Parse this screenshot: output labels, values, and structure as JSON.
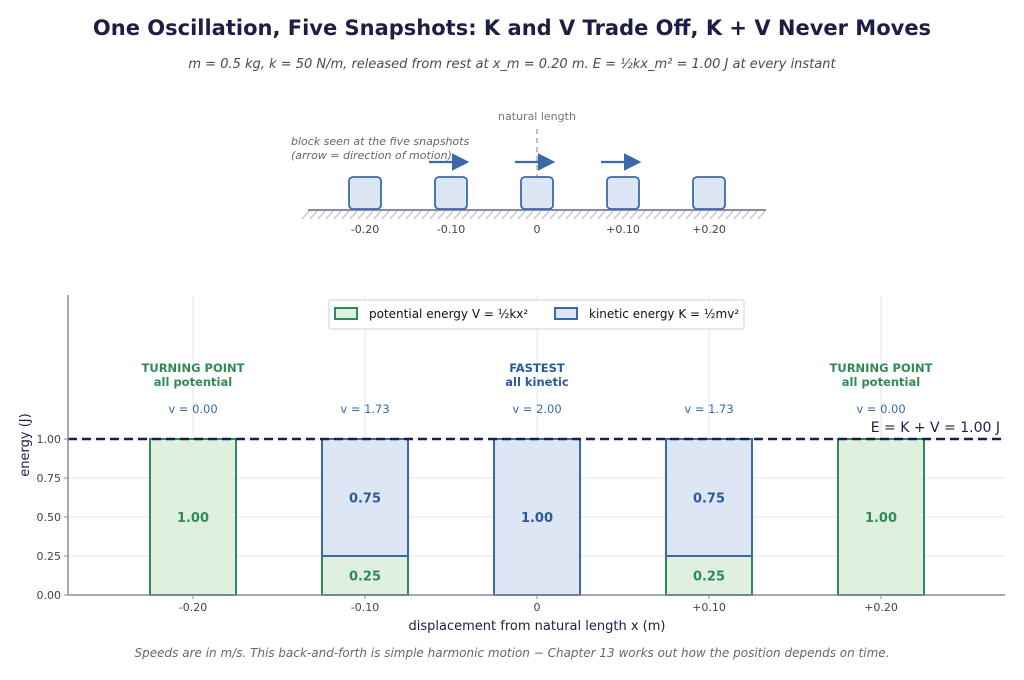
{
  "title": "One Oscillation, Five Snapshots:  K and V Trade Off, K + V Never Moves",
  "subtitle": "m = 0.5 kg,  k = 50 N/m,  released from rest at x_m = 0.20 m.  E = ½kx_m² = 1.00 J at every instant",
  "footnote": "Speeds are in m/s.  This back-and-forth is simple harmonic motion − Chapter 13 works out how the position depends on time.",
  "colors": {
    "potential_fill": "#dff0df",
    "potential_edge": "#2e8b57",
    "kinetic_fill": "#dce6f5",
    "kinetic_edge": "#3a69aa",
    "axis": "#8a8aa0",
    "grid": "#e6e6ee",
    "total_line": "#1e1d45",
    "arrow": "#3a69aa",
    "ground_hatch": "#b8b8cc"
  },
  "schematic": {
    "caption_line1": "block seen at the five snapshots",
    "caption_line2": "(arrow = direction of motion)",
    "natural_length_label": "natural length",
    "positions": [
      "-0.20",
      "-0.10",
      "0",
      "+0.10",
      "+0.20"
    ],
    "arrows": [
      false,
      true,
      true,
      true,
      false
    ],
    "block_icon": "block-icon",
    "arrow_icon": "right-arrow-icon"
  },
  "chart_data": {
    "type": "bar",
    "stacked": true,
    "categories": [
      "-0.20",
      "-0.10",
      "0",
      "+0.10",
      "+0.20"
    ],
    "series": [
      {
        "name": "potential energy  V = ½kx²",
        "values": [
          1.0,
          0.25,
          0.0,
          0.25,
          1.0
        ]
      },
      {
        "name": "kinetic energy  K = ½mv²",
        "values": [
          0.0,
          0.75,
          1.0,
          0.75,
          0.0
        ]
      }
    ],
    "data_labels_potential": [
      "1.00",
      "0.25",
      "",
      "0.25",
      "1.00"
    ],
    "data_labels_kinetic": [
      "",
      "0.75",
      "1.00",
      "0.75",
      ""
    ],
    "speed_labels": [
      "v = 0.00",
      "v = 1.73",
      "v = 2.00",
      "v = 1.73",
      "v = 0.00"
    ],
    "annotations": [
      {
        "index": 0,
        "line1": "TURNING POINT",
        "line2": "all potential",
        "kind": "potential"
      },
      {
        "index": 2,
        "line1": "FASTEST",
        "line2": "all kinetic",
        "kind": "kinetic"
      },
      {
        "index": 4,
        "line1": "TURNING POINT",
        "line2": "all potential",
        "kind": "potential"
      }
    ],
    "total_energy": 1.0,
    "total_label": "E = K + V = 1.00 J",
    "xlabel": "displacement from natural length   x   (m)",
    "ylabel": "energy    (J)",
    "yticks": [
      0.0,
      0.25,
      0.5,
      0.75,
      1.0
    ],
    "ytick_labels": [
      "0.00",
      "0.25",
      "0.50",
      "0.75",
      "1.00"
    ],
    "ylim": [
      0,
      1.0
    ],
    "grid": true,
    "legend": "top-center"
  }
}
